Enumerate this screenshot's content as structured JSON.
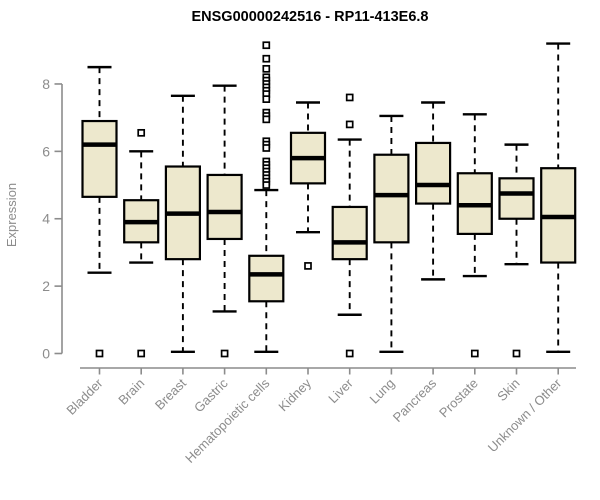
{
  "chart_data": {
    "type": "boxplot",
    "title": "ENSG00000242516 - RP11-413E6.8",
    "ylabel": "Expression",
    "xlabel": "",
    "y_ticks": [
      0,
      2,
      4,
      6,
      8
    ],
    "ylim": [
      0,
      9.6
    ],
    "grid": false,
    "legend": "none",
    "categories": [
      "Bladder",
      "Brain",
      "Breast",
      "Gastric",
      "Hematopoietic cells",
      "Kidney",
      "Liver",
      "Lung",
      "Pancreas",
      "Prostate",
      "Skin",
      "Unknown / Other"
    ],
    "boxes": [
      {
        "category": "Bladder",
        "low": 2.4,
        "q1": 4.65,
        "median": 6.2,
        "q3": 6.9,
        "high": 8.5,
        "outliers": [
          0
        ]
      },
      {
        "category": "Brain",
        "low": 2.7,
        "q1": 3.3,
        "median": 3.9,
        "q3": 4.55,
        "high": 6.0,
        "outliers": [
          6.55,
          0
        ]
      },
      {
        "category": "Breast",
        "low": 0.05,
        "q1": 2.8,
        "median": 4.15,
        "q3": 5.55,
        "high": 7.65,
        "outliers": []
      },
      {
        "category": "Gastric",
        "low": 1.25,
        "q1": 3.4,
        "median": 4.2,
        "q3": 5.3,
        "high": 7.95,
        "outliers": [
          0
        ]
      },
      {
        "category": "Hematopoietic cells",
        "low": 0.05,
        "q1": 1.55,
        "median": 2.35,
        "q3": 2.9,
        "high": 4.85,
        "outliers": [
          9.15,
          8.75,
          8.45,
          8.2,
          8.1,
          8.0,
          7.9,
          7.8,
          7.7,
          7.55,
          7.15,
          7.05,
          6.95,
          6.3,
          6.2,
          6.1,
          5.7,
          5.6,
          5.5,
          5.4,
          5.3,
          5.2,
          5.1,
          5.0
        ]
      },
      {
        "category": "Kidney",
        "low": 3.6,
        "q1": 5.05,
        "median": 5.8,
        "q3": 6.55,
        "high": 7.45,
        "outliers": [
          2.6
        ]
      },
      {
        "category": "Liver",
        "low": 1.15,
        "q1": 2.8,
        "median": 3.3,
        "q3": 4.35,
        "high": 6.35,
        "outliers": [
          7.6,
          6.8,
          0
        ]
      },
      {
        "category": "Lung",
        "low": 0.05,
        "q1": 3.3,
        "median": 4.7,
        "q3": 5.9,
        "high": 7.05,
        "outliers": []
      },
      {
        "category": "Pancreas",
        "low": 2.2,
        "q1": 4.45,
        "median": 5.0,
        "q3": 6.25,
        "high": 7.45,
        "outliers": []
      },
      {
        "category": "Prostate",
        "low": 2.3,
        "q1": 3.55,
        "median": 4.4,
        "q3": 5.35,
        "high": 7.1,
        "outliers": [
          0
        ]
      },
      {
        "category": "Skin",
        "low": 2.65,
        "q1": 4.0,
        "median": 4.75,
        "q3": 5.2,
        "high": 6.2,
        "outliers": [
          0
        ]
      },
      {
        "category": "Unknown / Other",
        "low": 0.05,
        "q1": 2.7,
        "median": 4.05,
        "q3": 5.5,
        "high": 9.2,
        "outliers": []
      }
    ],
    "colors": {
      "box_fill": "#EDE8CD",
      "box_border": "#000000",
      "median": "#000000",
      "whisker": "#000000",
      "outlier_stroke": "#000000",
      "outlier_fill": "#FFFFFF",
      "axis": "#8C8C8C",
      "axis_text": "#8C8C8C",
      "title": "#000000",
      "background": "#FFFFFF"
    }
  }
}
